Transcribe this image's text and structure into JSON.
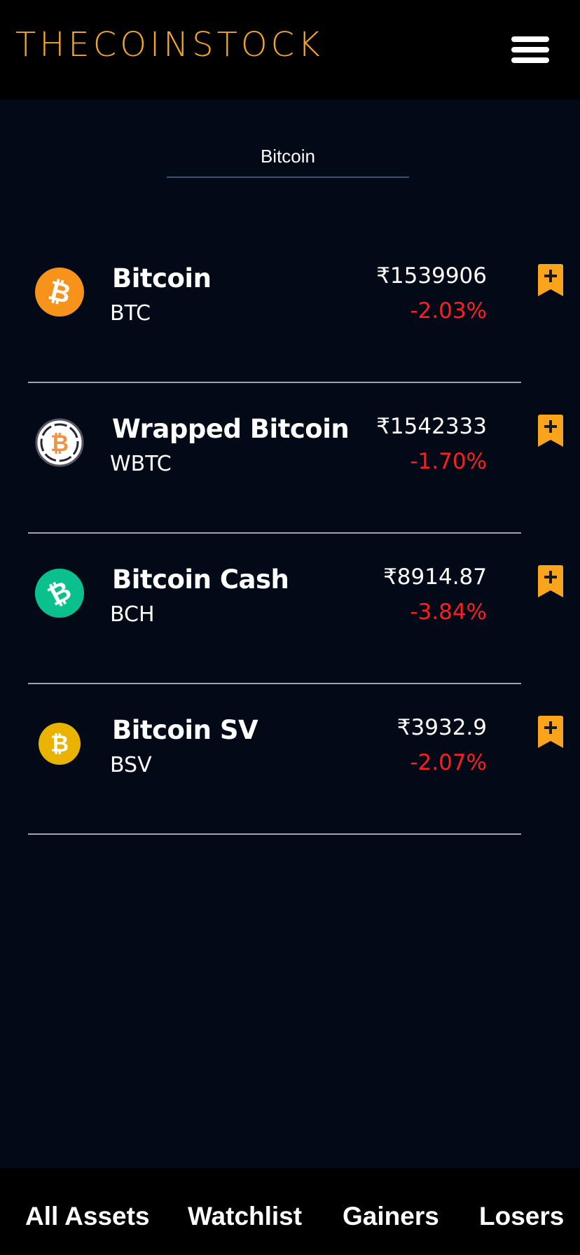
{
  "header": {
    "logo_text": "THECOINSTOCK",
    "menu_icon": "hamburger-menu-icon",
    "logo_color": "#f2a524"
  },
  "search": {
    "value": "Bitcoin"
  },
  "coins": [
    {
      "name": "Bitcoin",
      "symbol": "BTC",
      "price": "₹1539906",
      "change": "-2.03%",
      "icon": "bitcoin-logo-icon",
      "icon_color": "#f7931a"
    },
    {
      "name": "Wrapped Bitcoin",
      "symbol": "WBTC",
      "price": "₹1542333",
      "change": "-1.70%",
      "icon": "wrapped-bitcoin-logo-icon",
      "icon_color": "#f09242"
    },
    {
      "name": "Bitcoin Cash",
      "symbol": "BCH",
      "price": "₹8914.87",
      "change": "-3.84%",
      "icon": "bitcoin-cash-logo-icon",
      "icon_color": "#0ac18e"
    },
    {
      "name": "Bitcoin SV",
      "symbol": "BSV",
      "price": "₹3932.9",
      "change": "-2.07%",
      "icon": "bitcoin-sv-logo-icon",
      "icon_color": "#eab300"
    }
  ],
  "bookmark": {
    "icon": "bookmark-add-icon",
    "color": "#f9a41b"
  },
  "colors": {
    "background": "#020a17",
    "negative_change": "#ff1d1d"
  },
  "bottom_nav": {
    "items": [
      {
        "label": "All Assets"
      },
      {
        "label": "Watchlist"
      },
      {
        "label": "Gainers"
      },
      {
        "label": "Losers"
      }
    ]
  }
}
